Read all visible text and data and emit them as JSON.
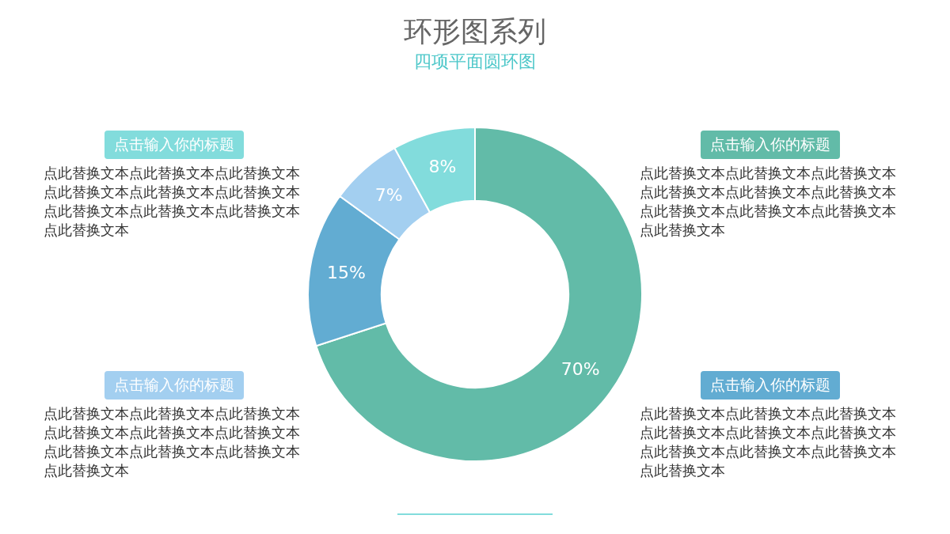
{
  "chart_data": {
    "type": "donut",
    "title": "环形图系列",
    "subtitle": "四项平面圆环图",
    "categories": [
      null,
      null,
      null,
      null
    ],
    "values": [
      70,
      15,
      7,
      8
    ],
    "colors": [
      "#62bba8",
      "#62acd2",
      "#a3cff0",
      "#82dcdc"
    ],
    "value_labels": [
      "70%",
      "15%",
      "7%",
      "8%"
    ],
    "legend": false,
    "annotations": [
      "点击输入你的标题",
      "点此替换文本点此替换文本点此替换文本点此替换文本点此替换文本点此替换文本点此替换文本点此替换文本点此替换文本点此替换文本",
      "点击输入你的标题",
      "点此替换文本点此替换文本点此替换文本点此替换文本点此替换文本点此替换文本点此替换文本点此替换文本点此替换文本点此替换文本",
      "点击输入你的标题",
      "点此替换文本点此替换文本点此替换文本点此替换文本点此替换文本点此替换文本点此替换文本点此替换文本点此替换文本点此替换文本",
      "点击输入你的标题",
      "点此替换文本点此替换文本点此替换文本点此替换文本点此替换文本点此替换文本点此替换文本点此替换文本点此替换文本点此替换文本"
    ]
  }
}
